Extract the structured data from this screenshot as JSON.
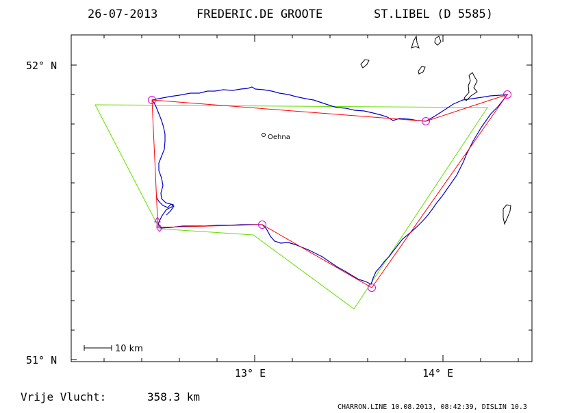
{
  "header": {
    "date": "26-07-2013",
    "pilot": "FREDERIC.DE GROOTE",
    "glider": "ST.LIBEL (D 5585)"
  },
  "axes": {
    "lat_top": "52° N",
    "lat_bottom": "51° N",
    "lon_13": "13° E",
    "lon_14": "14° E"
  },
  "place": {
    "name": "Oehna"
  },
  "scale": {
    "label": "10 km"
  },
  "footer": {
    "distance_label": "Vrije Vlucht:",
    "distance_value": "358.3 km",
    "program_info": "CHARRON.LINE 10.08.2013, 08:42:39, DISLIN 10.3"
  },
  "colors": {
    "track": "#0000cc",
    "task": "#ff0000",
    "area": "#66dd00",
    "turnpoint": "#dd00dd",
    "coast": "#000000"
  }
}
